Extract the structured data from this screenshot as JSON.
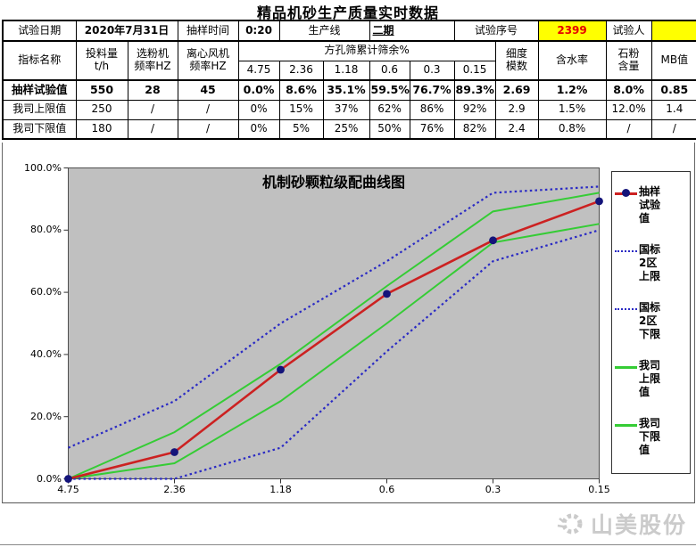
{
  "page_title": "精品机砂生产质量实时数据",
  "info": {
    "date_label": "试验日期",
    "date_value": "2020年7月31日",
    "time_label": "抽样时间",
    "time_value": "0:20",
    "line_label": "生产线",
    "line_value": "二期",
    "serial_label": "试验序号",
    "serial_value": "2399",
    "tester_label": "试验人",
    "tester_value": ""
  },
  "table": {
    "corner_header": "指标名称",
    "col_headers": [
      "投料量\nt/h",
      "选粉机\n频率HZ",
      "离心风机\n频率HZ"
    ],
    "sieve_group_header": "方孔筛累计筛余%",
    "sieve_sizes": [
      "4.75",
      "2.36",
      "1.18",
      "0.6",
      "0.3",
      "0.15"
    ],
    "tail_headers": [
      "细度\n模数",
      "含水率",
      "石粉\n含量",
      "MB值"
    ],
    "rows": [
      {
        "label": "抽样试验值",
        "bold": true,
        "values": [
          "550",
          "28",
          "45",
          "0.0%",
          "8.6%",
          "35.1%",
          "59.5%",
          "76.7%",
          "89.3%",
          "2.69",
          "1.2%",
          "8.0%",
          "0.85"
        ]
      },
      {
        "label": "我司上限值",
        "bold": false,
        "values": [
          "250",
          "/",
          "/",
          "0%",
          "15%",
          "37%",
          "62%",
          "86%",
          "92%",
          "2.9",
          "1.5%",
          "12.0%",
          "1.4"
        ]
      },
      {
        "label": "我司下限值",
        "bold": false,
        "values": [
          "180",
          "/",
          "/",
          "0%",
          "5%",
          "25%",
          "50%",
          "76%",
          "82%",
          "2.4",
          "0.8%",
          "/",
          "/"
        ]
      }
    ]
  },
  "chart_data": {
    "type": "line",
    "title": "机制砂颗粒级配曲线图",
    "x_categories": [
      "4.75",
      "2.36",
      "1.18",
      "0.6",
      "0.3",
      "0.15"
    ],
    "y_ticks": [
      "100.0%",
      "80.0%",
      "60.0%",
      "40.0%",
      "20.0%",
      "0.0%"
    ],
    "ylim": [
      0,
      100
    ],
    "grid": false,
    "legend_position": "right",
    "plot_bg": "#c0c0c0",
    "series": [
      {
        "name": "抽样试验值",
        "legend_label": "抽样\n试验\n值",
        "values": [
          0,
          8.6,
          35.1,
          59.5,
          76.7,
          89.3
        ],
        "color": "#cc2121",
        "style": "solid-marker",
        "marker_color": "#14147a"
      },
      {
        "name": "国标2区上限",
        "legend_label": "国标\n2区\n上限",
        "values": [
          10,
          25,
          50,
          70,
          92,
          94
        ],
        "color": "#2a2ac4",
        "style": "dotted"
      },
      {
        "name": "国标2区下限",
        "legend_label": "国标\n2区\n下限",
        "values": [
          0,
          0,
          10,
          41,
          70,
          80
        ],
        "color": "#2a2ac4",
        "style": "dotted"
      },
      {
        "name": "我司上限值",
        "legend_label": "我司\n上限\n值",
        "values": [
          0,
          15,
          37,
          62,
          86,
          92
        ],
        "color": "#35cc35",
        "style": "solid"
      },
      {
        "name": "我司下限值",
        "legend_label": "我司\n下限\n值",
        "values": [
          0,
          5,
          25,
          50,
          76,
          82
        ],
        "color": "#35cc35",
        "style": "solid"
      }
    ]
  },
  "watermark": {
    "text": "山美股份"
  },
  "colors": {
    "highlight_yellow": "#ffff00",
    "serial_red": "#e60000",
    "axis": "#333333"
  }
}
